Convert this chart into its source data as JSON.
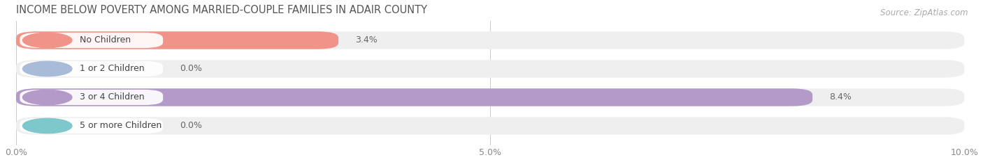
{
  "title": "INCOME BELOW POVERTY AMONG MARRIED-COUPLE FAMILIES IN ADAIR COUNTY",
  "source": "Source: ZipAtlas.com",
  "categories": [
    "No Children",
    "1 or 2 Children",
    "3 or 4 Children",
    "5 or more Children"
  ],
  "values": [
    3.4,
    0.0,
    8.4,
    0.0
  ],
  "bar_colors": [
    "#f0948a",
    "#a8bcd8",
    "#b39ac8",
    "#7ec8cc"
  ],
  "bg_color": "#ffffff",
  "bar_bg_color": "#efefef",
  "xlim": [
    0,
    10.0
  ],
  "xtick_labels": [
    "0.0%",
    "5.0%",
    "10.0%"
  ],
  "bar_height": 0.62,
  "title_fontsize": 10.5,
  "source_fontsize": 8.5,
  "label_fontsize": 9,
  "value_fontsize": 9
}
